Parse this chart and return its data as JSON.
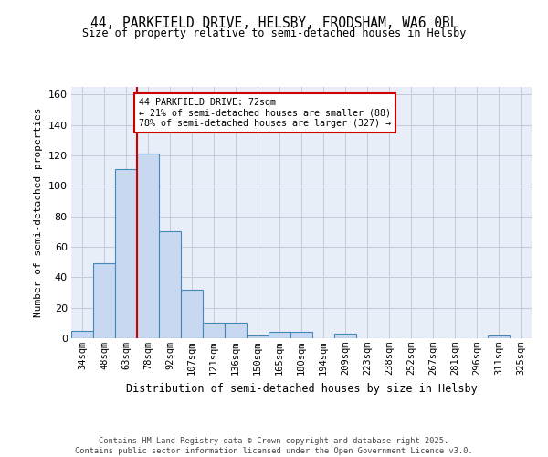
{
  "title_line1": "44, PARKFIELD DRIVE, HELSBY, FRODSHAM, WA6 0BL",
  "title_line2": "Size of property relative to semi-detached houses in Helsby",
  "xlabel": "Distribution of semi-detached houses by size in Helsby",
  "ylabel": "Number of semi-detached properties",
  "categories": [
    "34sqm",
    "48sqm",
    "63sqm",
    "78sqm",
    "92sqm",
    "107sqm",
    "121sqm",
    "136sqm",
    "150sqm",
    "165sqm",
    "180sqm",
    "194sqm",
    "209sqm",
    "223sqm",
    "238sqm",
    "252sqm",
    "267sqm",
    "281sqm",
    "296sqm",
    "311sqm",
    "325sqm"
  ],
  "values": [
    5,
    49,
    111,
    121,
    70,
    32,
    10,
    10,
    2,
    4,
    4,
    0,
    3,
    0,
    0,
    0,
    0,
    0,
    0,
    2,
    0
  ],
  "bar_color": "#c8d8f0",
  "bar_edge_color": "#4488bb",
  "grid_color": "#c8c8d8",
  "bg_color": "#e8eef8",
  "red_line_x": 2.5,
  "annotation_text": "44 PARKFIELD DRIVE: 72sqm\n← 21% of semi-detached houses are smaller (88)\n78% of semi-detached houses are larger (327) →",
  "annotation_box_color": "#ffffff",
  "annotation_box_edge": "#cc0000",
  "red_line_color": "#cc0000",
  "ylim": [
    0,
    165
  ],
  "yticks": [
    0,
    20,
    40,
    60,
    80,
    100,
    120,
    140,
    160
  ],
  "footer": "Contains HM Land Registry data © Crown copyright and database right 2025.\nContains public sector information licensed under the Open Government Licence v3.0."
}
